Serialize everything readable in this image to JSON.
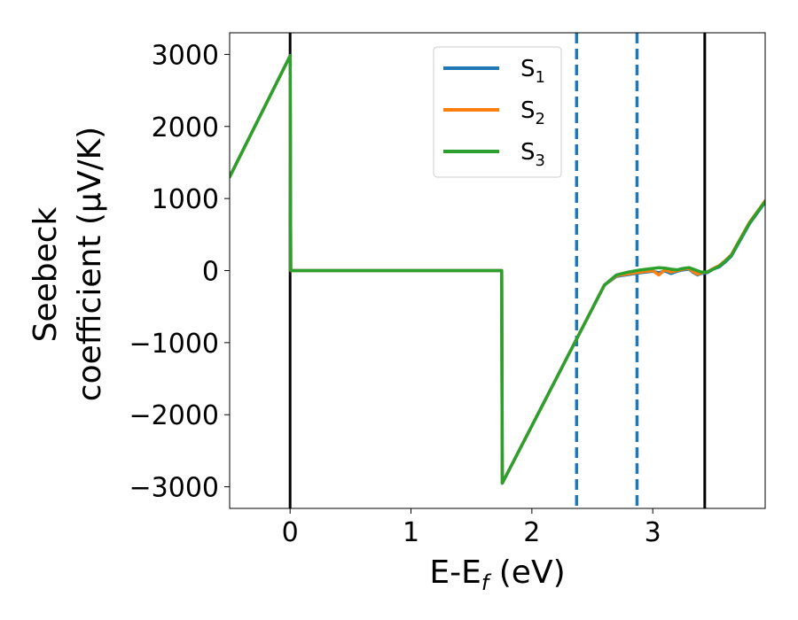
{
  "chart_data": {
    "type": "line",
    "xlabel": {
      "base": "E-E",
      "sub": "f",
      "suffix": " (eV)"
    },
    "ylabel": {
      "line1": "Seebeck",
      "line2": "coefficient  (μV/K)"
    },
    "xlim": [
      -0.5,
      3.93
    ],
    "ylim": [
      -3300,
      3300
    ],
    "xticks": [
      0,
      1,
      2,
      3
    ],
    "xtick_labels": [
      "0",
      "1",
      "2",
      "3"
    ],
    "yticks": [
      3000,
      2000,
      1000,
      0,
      -1000,
      -2000,
      -3000
    ],
    "ytick_labels": [
      "3000",
      "2000",
      "1000",
      "0",
      "−1000",
      "−2000",
      "−3000"
    ],
    "vertical_lines": [
      {
        "x": 0.0,
        "style": "solid",
        "color": "#000000"
      },
      {
        "x": 3.43,
        "style": "solid",
        "color": "#000000"
      },
      {
        "x": 2.37,
        "style": "dashed",
        "color": "#1f77b4"
      },
      {
        "x": 2.87,
        "style": "dashed",
        "color": "#1f77b4"
      }
    ],
    "legend": {
      "placement": "top-center"
    },
    "series": [
      {
        "name": "S",
        "sub": "1",
        "color": "#1f77b4",
        "x": [
          -0.5,
          0.0,
          0.005,
          1.75,
          1.755,
          2.6,
          2.7,
          2.9,
          3.0,
          3.05,
          3.1,
          3.15,
          3.2,
          3.25,
          3.3,
          3.33,
          3.37,
          3.4,
          3.45,
          3.5,
          3.55,
          3.6,
          3.65,
          3.7,
          3.8,
          3.93
        ],
        "y": [
          1300,
          2980,
          0,
          0,
          -2950,
          -200,
          -80,
          -30,
          -10,
          -30,
          -5,
          -40,
          -10,
          10,
          20,
          -20,
          -60,
          -40,
          -30,
          20,
          50,
          120,
          200,
          350,
          650,
          950
        ]
      },
      {
        "name": "S",
        "sub": "2",
        "color": "#ff7f0e",
        "x": [
          -0.5,
          0.0,
          0.005,
          1.75,
          1.755,
          2.6,
          2.7,
          2.9,
          3.0,
          3.05,
          3.1,
          3.15,
          3.2,
          3.25,
          3.3,
          3.33,
          3.37,
          3.4,
          3.45,
          3.5,
          3.55,
          3.6,
          3.65,
          3.7,
          3.8,
          3.93
        ],
        "y": [
          1300,
          2980,
          0,
          0,
          -2950,
          -200,
          -70,
          -20,
          0,
          -60,
          10,
          -20,
          0,
          20,
          30,
          -10,
          -50,
          -30,
          -20,
          30,
          70,
          140,
          220,
          370,
          670,
          970
        ]
      },
      {
        "name": "S",
        "sub": "3",
        "color": "#2ca02c",
        "x": [
          -0.5,
          0.0,
          0.005,
          1.75,
          1.755,
          2.6,
          2.7,
          2.8,
          2.9,
          3.0,
          3.05,
          3.1,
          3.15,
          3.2,
          3.25,
          3.3,
          3.35,
          3.4,
          3.45,
          3.5,
          3.55,
          3.6,
          3.65,
          3.7,
          3.8,
          3.93
        ],
        "y": [
          1300,
          2980,
          0,
          0,
          -2950,
          -200,
          -60,
          -20,
          10,
          30,
          40,
          35,
          20,
          10,
          30,
          40,
          10,
          -20,
          -20,
          20,
          60,
          130,
          210,
          360,
          660,
          960
        ]
      }
    ]
  }
}
